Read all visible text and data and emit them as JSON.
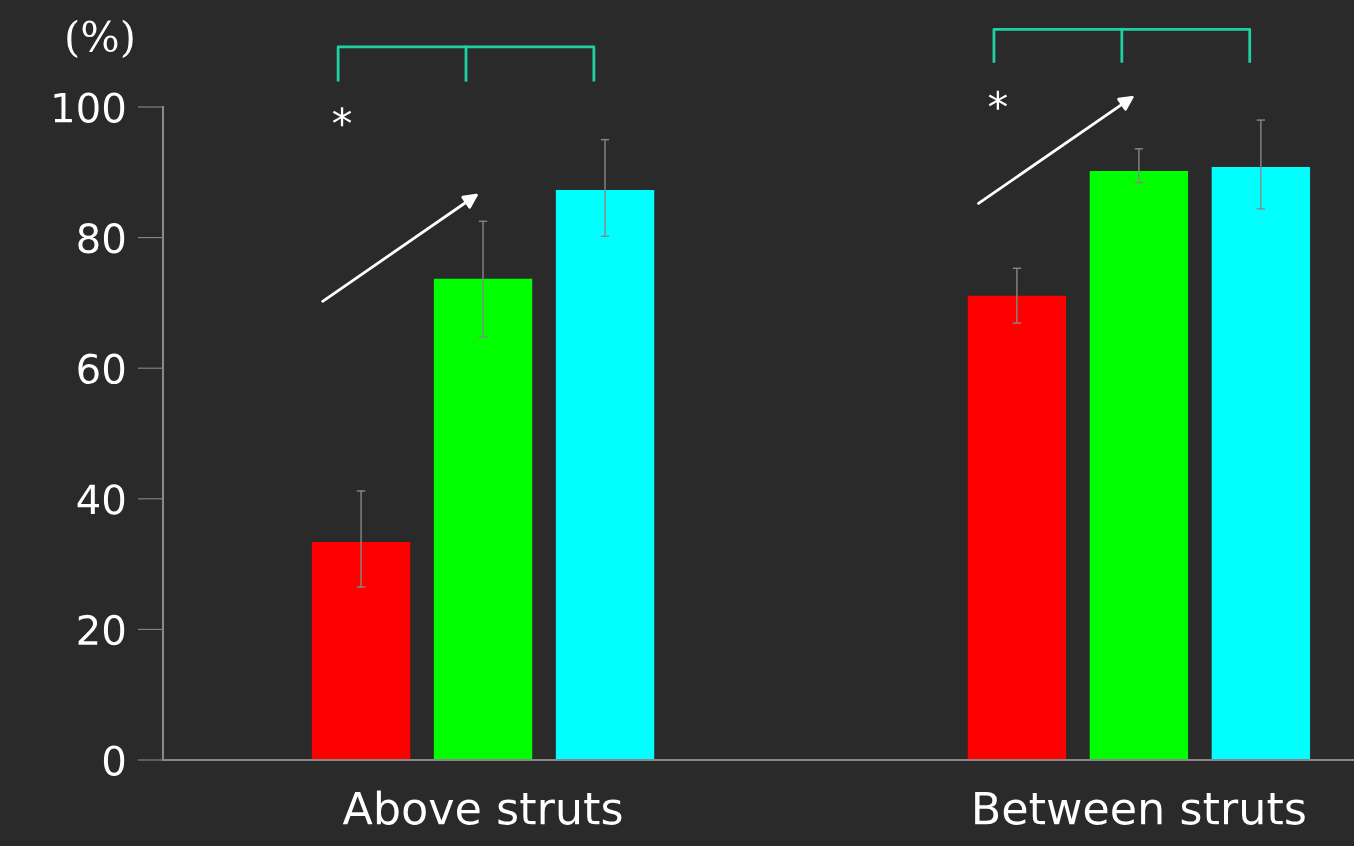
{
  "chart_data": {
    "type": "bar",
    "ylabel": "(%)",
    "categories": [
      "Above struts",
      "Between struts"
    ],
    "series": [
      {
        "color": "#ff0000",
        "values": [
          33.4,
          71.1
        ],
        "errors": [
          [
            26.5,
            41.2
          ],
          [
            66.9,
            75.3
          ]
        ]
      },
      {
        "color": "#00ff00",
        "values": [
          73.7,
          90.2
        ],
        "errors": [
          [
            64.8,
            82.5
          ],
          [
            88.4,
            93.6
          ]
        ]
      },
      {
        "color": "#00ffff",
        "values": [
          87.3,
          90.8
        ],
        "errors": [
          [
            80.2,
            95.0
          ],
          [
            84.4,
            98.0
          ]
        ]
      }
    ],
    "ylim": [
      0,
      100
    ],
    "yticks": [
      0,
      20,
      40,
      60,
      80,
      100
    ],
    "grid": false,
    "legend": false,
    "annotations": [
      "*",
      "*"
    ]
  }
}
